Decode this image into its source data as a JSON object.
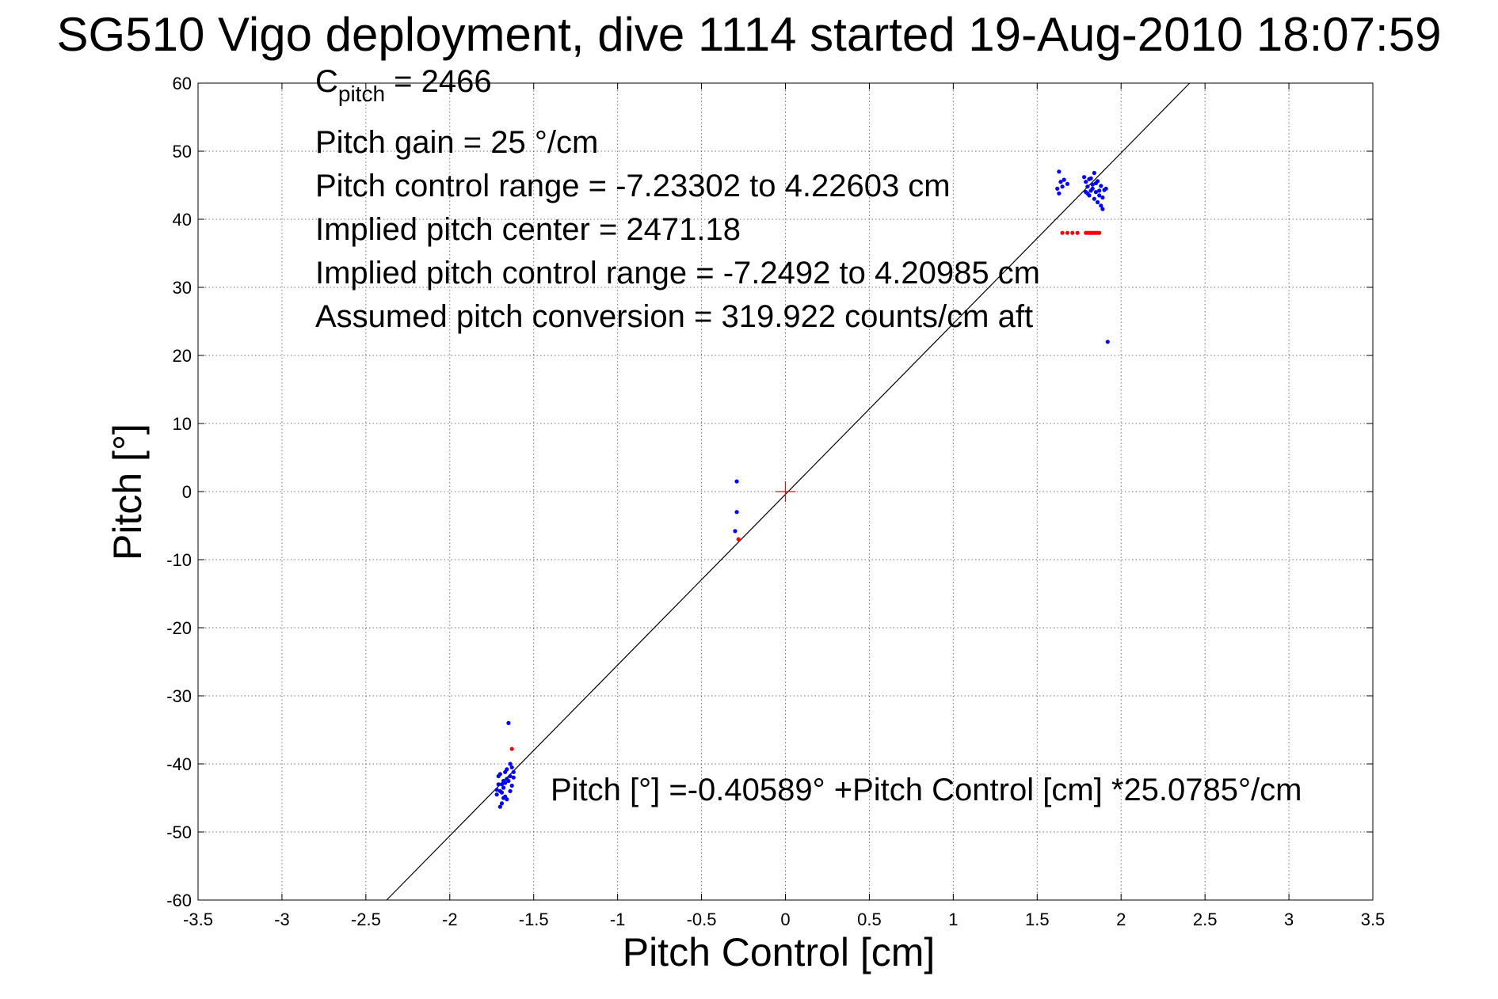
{
  "chart_data": {
    "type": "scatter",
    "title": "SG510 Vigo deployment, dive 1114 started 19-Aug-2010 18:07:59",
    "xlabel": "Pitch Control [cm]",
    "ylabel": "Pitch [°]",
    "xlim": [
      -3.5,
      3.5
    ],
    "ylim": [
      -60,
      60
    ],
    "xticks": [
      -3.5,
      -3,
      -2.5,
      -2,
      -1.5,
      -1,
      -0.5,
      0,
      0.5,
      1,
      1.5,
      2,
      2.5,
      3,
      3.5
    ],
    "yticks": [
      -60,
      -50,
      -40,
      -30,
      -20,
      -10,
      0,
      10,
      20,
      30,
      40,
      50,
      60
    ],
    "xtick_labels": [
      "-3.5",
      "-3",
      "-2.5",
      "-2",
      "-1.5",
      "-1",
      "-0.5",
      "0",
      "0.5",
      "1",
      "1.5",
      "2",
      "2.5",
      "3",
      "3.5"
    ],
    "ytick_labels": [
      "-60",
      "-50",
      "-40",
      "-30",
      "-20",
      "-10",
      "0",
      "10",
      "20",
      "30",
      "40",
      "50",
      "60"
    ],
    "grid": true,
    "series": [
      {
        "color": "#0000ff",
        "marker": "dot",
        "points": [
          [
            1.63,
            47.0
          ],
          [
            1.64,
            45.5
          ],
          [
            1.65,
            44.8
          ],
          [
            1.62,
            44.5
          ],
          [
            1.66,
            45.8
          ],
          [
            1.68,
            45.2
          ],
          [
            1.63,
            43.8
          ],
          [
            1.78,
            46.2
          ],
          [
            1.79,
            45.5
          ],
          [
            1.8,
            44.8
          ],
          [
            1.81,
            45.9
          ],
          [
            1.82,
            44.2
          ],
          [
            1.83,
            45.1
          ],
          [
            1.84,
            46.8
          ],
          [
            1.85,
            44.0
          ],
          [
            1.86,
            45.6
          ],
          [
            1.87,
            43.5
          ],
          [
            1.88,
            44.9
          ],
          [
            1.89,
            43.2
          ],
          [
            1.9,
            44.3
          ],
          [
            1.8,
            43.8
          ],
          [
            1.82,
            46.0
          ],
          [
            1.84,
            43.0
          ],
          [
            1.86,
            42.5
          ],
          [
            1.88,
            42.0
          ],
          [
            1.89,
            41.5
          ],
          [
            1.91,
            44.5
          ],
          [
            1.79,
            44.0
          ],
          [
            1.83,
            44.5
          ],
          [
            1.85,
            45.3
          ],
          [
            1.87,
            44.2
          ],
          [
            1.81,
            43.5
          ],
          [
            1.92,
            22.0
          ],
          [
            -0.29,
            1.5
          ],
          [
            -0.29,
            -3.0
          ],
          [
            -0.3,
            -5.8
          ],
          [
            -1.65,
            -34.0
          ],
          [
            -1.64,
            -40.0
          ],
          [
            -1.63,
            -40.5
          ],
          [
            -1.62,
            -41.2
          ],
          [
            -1.65,
            -42.5
          ],
          [
            -1.63,
            -43.2
          ],
          [
            -1.64,
            -41.8
          ],
          [
            -1.66,
            -40.8
          ],
          [
            -1.62,
            -42.0
          ],
          [
            -1.64,
            -44.0
          ],
          [
            -1.66,
            -42.2
          ],
          [
            -1.67,
            -42.8
          ],
          [
            -1.68,
            -43.5
          ],
          [
            -1.69,
            -44.2
          ],
          [
            -1.7,
            -41.5
          ],
          [
            -1.71,
            -43.0
          ],
          [
            -1.72,
            -44.5
          ],
          [
            -1.68,
            -45.0
          ],
          [
            -1.69,
            -45.8
          ],
          [
            -1.7,
            -46.3
          ],
          [
            -1.67,
            -41.2
          ],
          [
            -1.71,
            -41.8
          ],
          [
            -1.68,
            -42.5
          ],
          [
            -1.7,
            -44.0
          ],
          [
            -1.69,
            -43.0
          ],
          [
            -1.67,
            -44.8
          ],
          [
            -1.72,
            -43.8
          ],
          [
            -1.66,
            -45.2
          ]
        ]
      },
      {
        "color": "#ff0000",
        "marker": "dot",
        "points": [
          [
            1.65,
            38.0
          ],
          [
            1.68,
            38.0
          ],
          [
            1.71,
            38.0
          ],
          [
            1.74,
            38.0
          ],
          [
            1.79,
            38.0
          ],
          [
            1.8,
            38.0
          ],
          [
            1.81,
            38.0
          ],
          [
            1.82,
            38.0
          ],
          [
            1.83,
            38.0
          ],
          [
            1.84,
            38.0
          ],
          [
            1.85,
            38.0
          ],
          [
            1.86,
            38.0
          ],
          [
            1.87,
            38.0
          ],
          [
            -0.28,
            -7.0
          ],
          [
            -1.63,
            -37.8
          ]
        ]
      }
    ],
    "fit_line": {
      "color": "#000000",
      "intercept": -0.40589,
      "slope": 25.0785
    },
    "center_marker": {
      "x": 0,
      "y": 0,
      "color": "#ff0000",
      "shape": "plus"
    },
    "annotations": [
      {
        "text": "Pitch gain = 25 °/cm"
      },
      {
        "text": "Pitch control range = -7.23302 to 4.22603 cm"
      },
      {
        "text": "Implied pitch center = 2471.18"
      },
      {
        "text": "Implied pitch control range = -7.2492 to 4.20985 cm"
      },
      {
        "text": "Assumed pitch conversion = 319.922 counts/cm aft"
      },
      {
        "text": "Pitch [°] =-0.40589° +Pitch Control [cm] *25.0785°/cm"
      }
    ],
    "cpitch": {
      "symbol": "C",
      "subscript": "pitch",
      "value_text": " = 2466"
    }
  }
}
